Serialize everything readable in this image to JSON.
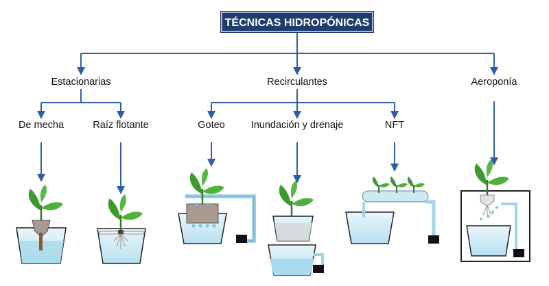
{
  "title": "TÉCNICAS HIDROPÓNICAS",
  "categories": {
    "stationary": "Estacionarias",
    "recirculating": "Recirculantes",
    "aeroponics": "Aeroponía"
  },
  "techniques": {
    "wick": "De mecha",
    "floating_root": "Raíz flotante",
    "drip": "Goteo",
    "flood_drain": "Inundación y drenaje",
    "nft": "NFT"
  },
  "colors": {
    "connector": "#2d5fa8",
    "title_bg": "#1f3c6e",
    "water": "#bfe4f2",
    "leaf": "#3e9a2f",
    "pipe": "#9fd3e6"
  }
}
